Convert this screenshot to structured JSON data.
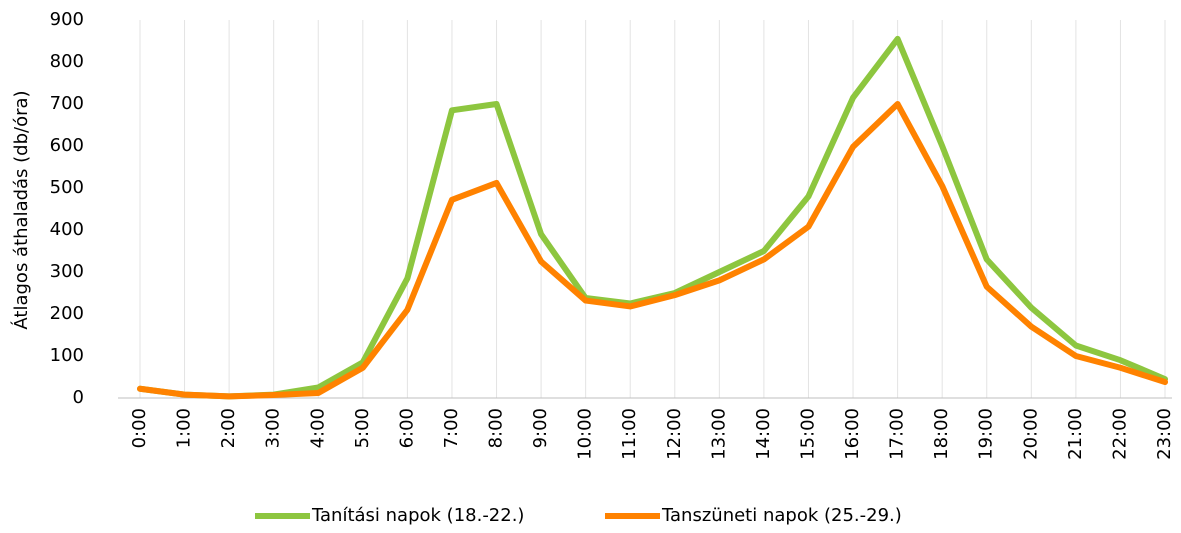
{
  "chart_data": {
    "type": "line",
    "y_label": "Átlagos áthaladás (db/óra)",
    "categories": [
      "0:00",
      "1:00",
      "2:00",
      "3:00",
      "4:00",
      "5:00",
      "6:00",
      "7:00",
      "8:00",
      "9:00",
      "10:00",
      "11:00",
      "12:00",
      "13:00",
      "14:00",
      "15:00",
      "16:00",
      "17:00",
      "18:00",
      "19:00",
      "20:00",
      "21:00",
      "22:00",
      "23:00"
    ],
    "series": [
      {
        "name": "Tanítási napok (18.-22.)",
        "color": "#8dc63f",
        "values": [
          22,
          8,
          4,
          8,
          25,
          85,
          285,
          685,
          700,
          390,
          238,
          225,
          250,
          300,
          350,
          480,
          715,
          855,
          600,
          330,
          215,
          125,
          90,
          45
        ]
      },
      {
        "name": "Tanszüneti napok (25.-29.)",
        "color": "#ff8200",
        "values": [
          22,
          8,
          4,
          7,
          12,
          72,
          210,
          472,
          512,
          325,
          232,
          218,
          245,
          280,
          330,
          408,
          598,
          700,
          505,
          265,
          170,
          100,
          72,
          38
        ]
      }
    ],
    "ylim": [
      0,
      900
    ],
    "yticks": [
      0,
      100,
      200,
      300,
      400,
      500,
      600,
      700,
      800,
      900
    ],
    "grid": "x",
    "legend": "bottom"
  }
}
